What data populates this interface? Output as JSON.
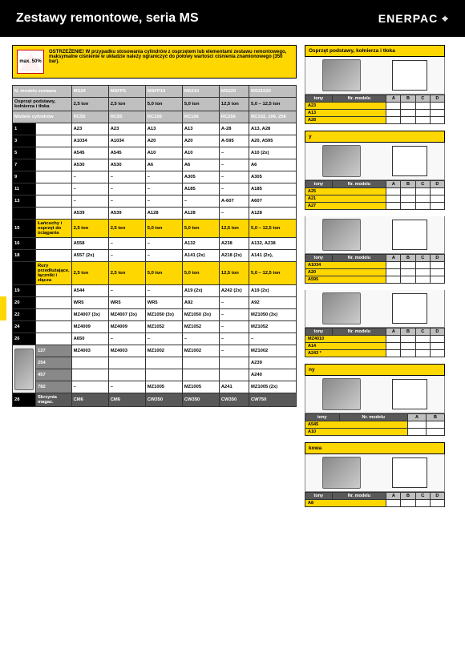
{
  "header": {
    "title": "Zestawy remontowe, seria MS",
    "brand": "ENERPAC ⌖"
  },
  "warning": {
    "badge": "max. 50%",
    "text": "OSTRZEŻENIE! W przypadku stosowania cylindrów z osprzętem lub elementami zestawu remontowego, maksymalne ciśnienie w układzie należy ograniczyć do połowy wartości ciśnienia znamionowego (350 bar)."
  },
  "main_table": {
    "header_rows": [
      {
        "cls": "hdr-dark",
        "cells": [
          "N. modelu zestawu",
          "MS24",
          "MSFP5",
          "MSFP10",
          "MS210",
          "MS220",
          "MS21020"
        ]
      },
      {
        "cls": "hdr-yellow",
        "cells": [
          "Osprzęt podstawy, kołnierza i tłoka",
          "2,5 ton",
          "2,5 ton",
          "5,0 ton",
          "5,0 ton",
          "12,5 ton",
          "5,0 – 12,5 ton"
        ]
      },
      {
        "cls": "hdr-dark",
        "cells": [
          "Modele cylindrów",
          "RC55",
          "RC55",
          "RC106",
          "RC106",
          "RC256",
          "RC102, 106, 256"
        ]
      }
    ],
    "rows": [
      {
        "n": "1",
        "c": [
          "",
          "A23",
          "A23",
          "A13",
          "A13",
          "A-28",
          "A13, A28"
        ]
      },
      {
        "n": "3",
        "c": [
          "",
          "A1034",
          "A1034",
          "A20",
          "A20",
          "A-595",
          "A20, A595"
        ]
      },
      {
        "n": "5",
        "c": [
          "",
          "A545",
          "A545",
          "A10",
          "A10",
          "–",
          "A10 (2x)"
        ]
      },
      {
        "n": "7",
        "c": [
          "",
          "A530",
          "A530",
          "A6",
          "A6",
          "–",
          "A6"
        ]
      },
      {
        "n": "9",
        "c": [
          "",
          "–",
          "–",
          "–",
          "A305",
          "–",
          "A305"
        ]
      },
      {
        "n": "11",
        "c": [
          "",
          "–",
          "–",
          "–",
          "A185",
          "–",
          "A185"
        ]
      },
      {
        "n": "13",
        "c": [
          "",
          "–",
          "–",
          "–",
          "–",
          "A-607",
          "A607"
        ]
      },
      {
        "n": "",
        "c": [
          "",
          "A539",
          "A539",
          "A128",
          "A128",
          "–",
          "A128"
        ]
      },
      {
        "n": "15",
        "c": [
          "Łańcuchy i osprzęt do ściągania",
          "2,5 ton",
          "2,5 ton",
          "5,0 ton",
          "5,0 ton",
          "12,5 ton",
          "5,0 – 12,5 ton"
        ],
        "yellow": true
      },
      {
        "n": "16",
        "c": [
          "",
          "A558",
          "–",
          "–",
          "A132",
          "A238",
          "A132, A238"
        ]
      },
      {
        "n": "18",
        "c": [
          "",
          "A557 (2x)",
          "–",
          "–",
          "A141 (2x)",
          "A218 (2x)",
          "A141 (2x),"
        ]
      },
      {
        "n": "",
        "c": [
          "Rury przedłużające, łączniki i złącza",
          "2,5 ton",
          "2,5 ton",
          "5,0 ton",
          "5,0 ton",
          "12,5 ton",
          "5,0 – 12,5 ton"
        ],
        "yellow": true
      },
      {
        "n": "19",
        "c": [
          "",
          "A544",
          "–",
          "–",
          "A19 (2x)",
          "A242 (2x)",
          "A19 (2x)"
        ]
      },
      {
        "n": "20",
        "c": [
          "",
          "WR5",
          "WR5",
          "WR5",
          "A92",
          "–",
          "A92"
        ]
      },
      {
        "n": "22",
        "c": [
          "",
          "MZ4007 (3x)",
          "MZ4007 (3x)",
          "MZ1050 (3x)",
          "MZ1050 (3x)",
          "–",
          "MZ1050 (3x)"
        ]
      },
      {
        "n": "24",
        "c": [
          "",
          "MZ4009",
          "MZ4009",
          "MZ1052",
          "MZ1052",
          "–",
          "MZ1052"
        ]
      },
      {
        "n": "26",
        "c": [
          "",
          "A650",
          "–",
          "–",
          "–",
          "–",
          "–"
        ]
      }
    ],
    "sub_rows": [
      {
        "n": "127",
        "c": [
          "MZ4003",
          "MZ4003",
          "MZ1002",
          "MZ1002",
          "–",
          "MZ1002"
        ]
      },
      {
        "n": "254",
        "c": [
          "",
          "",
          "",
          "",
          "",
          "A239"
        ]
      },
      {
        "n": "457",
        "c": [
          "",
          "",
          "",
          "",
          "",
          "A240"
        ]
      },
      {
        "n": "782",
        "c": [
          "–",
          "–",
          "MZ1005",
          "MZ1005",
          "A241",
          "MZ1005 (2x)"
        ]
      }
    ],
    "final_row": {
      "n": "28",
      "label": "Skrzynia magaz.",
      "c": [
        "CM6",
        "CM6",
        "CW350",
        "CW350",
        "CW350",
        "CW750"
      ]
    }
  },
  "side": [
    {
      "title": "Osprzęt podstawy, kołnierza i tłoka",
      "hdr": [
        "tony",
        "Nr. modelu",
        "A",
        "B",
        "C",
        "D"
      ],
      "rows": [
        "A23",
        "A13",
        "A28"
      ]
    },
    {
      "title": "y",
      "hdr": [
        "tony",
        "Nr. modelu",
        "A",
        "B",
        "C",
        "D"
      ],
      "rows": [
        "A25",
        "A21",
        "A27"
      ]
    },
    {
      "title": "",
      "hdr": [
        "tony",
        "Nr. modelu",
        "A",
        "B",
        "C",
        "D"
      ],
      "rows": [
        "A1034",
        "A20",
        "A595"
      ]
    },
    {
      "title": "",
      "hdr": [
        "tony",
        "Nr. modelu",
        "A",
        "B",
        "C",
        "D"
      ],
      "rows": [
        "MZ4010",
        "A14",
        "A243 *"
      ]
    },
    {
      "title": "ny",
      "hdr": [
        "tony",
        "Nr. modelu",
        "A",
        "B"
      ],
      "rows": [
        "A545",
        "A10"
      ]
    },
    {
      "title": "kowa",
      "hdr": [
        "tony",
        "Nr. modelu",
        "A",
        "B",
        "C",
        "D"
      ],
      "rows": [
        "A8"
      ]
    }
  ],
  "colors": {
    "yellow": "#ffd700",
    "dark": "#595959",
    "grey": "#bfbfbf"
  }
}
